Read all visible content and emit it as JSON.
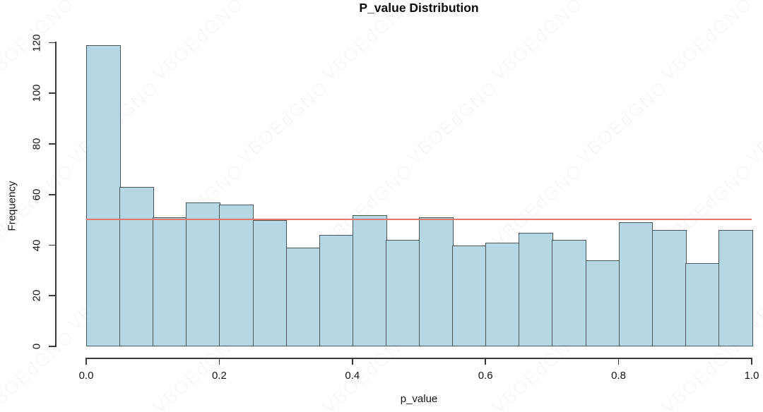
{
  "chart_data": {
    "type": "bar",
    "subtype": "histogram",
    "title": "P_value Distribution",
    "xlabel": "p_value",
    "ylabel": "Frequency",
    "bin_start": 0.0,
    "bin_width": 0.05,
    "categories": [
      "0.00-0.05",
      "0.05-0.10",
      "0.10-0.15",
      "0.15-0.20",
      "0.20-0.25",
      "0.25-0.30",
      "0.30-0.35",
      "0.35-0.40",
      "0.40-0.45",
      "0.45-0.50",
      "0.50-0.55",
      "0.55-0.60",
      "0.60-0.65",
      "0.65-0.70",
      "0.70-0.75",
      "0.75-0.80",
      "0.80-0.85",
      "0.85-0.90",
      "0.90-0.95",
      "0.95-1.00"
    ],
    "values": [
      119,
      63,
      51,
      57,
      56,
      50,
      39,
      44,
      52,
      42,
      51,
      40,
      41,
      45,
      42,
      34,
      49,
      46,
      33,
      46
    ],
    "xlim": [
      0.0,
      1.0
    ],
    "ylim": [
      0,
      120
    ],
    "x_ticks": {
      "values": [
        0.0,
        0.2,
        0.4,
        0.6,
        0.8,
        1.0
      ],
      "labels": [
        "0.0",
        "0.2",
        "0.4",
        "0.6",
        "0.8",
        "1.0"
      ]
    },
    "y_ticks": {
      "values": [
        0,
        20,
        40,
        60,
        80,
        100,
        120
      ],
      "labels": [
        "0",
        "20",
        "40",
        "60",
        "80",
        "100",
        "120"
      ]
    },
    "grid": false,
    "legend": "none",
    "reference_line": {
      "y": 50,
      "color": "#f2796a"
    },
    "colors": {
      "bar_fill": "#b5d8e4",
      "bar_border": "#47545a",
      "axis": "#3b3b3b",
      "text": "#141414"
    },
    "watermark_text": "VBOEdGNO"
  }
}
